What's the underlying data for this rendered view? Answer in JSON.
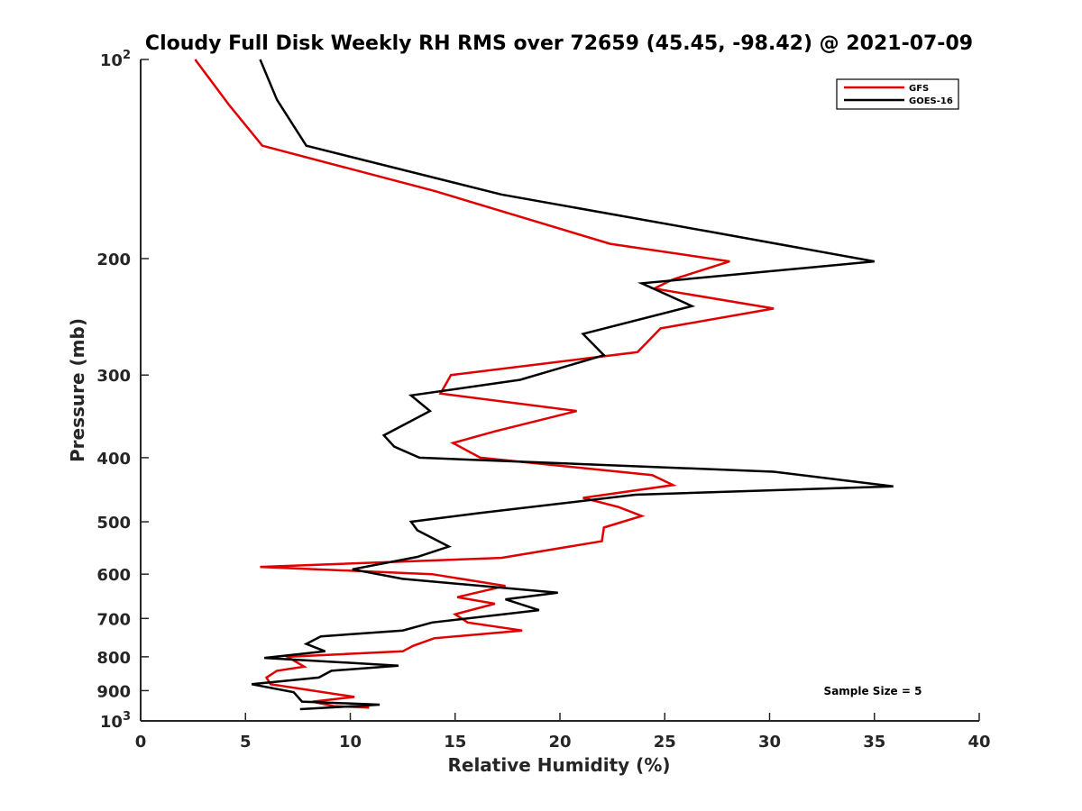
{
  "chart_data": {
    "type": "line",
    "title": "Cloudy Full Disk Weekly RH RMS over 72659 (45.45, -98.42) @ 2021-07-09",
    "xlabel": "Relative Humidity (%)",
    "ylabel": "Pressure (mb)",
    "xlim": [
      0,
      40
    ],
    "ylim": [
      100,
      1000
    ],
    "y_scale": "log",
    "y_reversed": true,
    "grid": false,
    "legend_position": "top-right",
    "annotation": "Sample Size = 5",
    "x_ticks": [
      "0",
      "5",
      "10",
      "15",
      "20",
      "25",
      "30",
      "35",
      "40"
    ],
    "y_ticks": [
      {
        "value": 100,
        "base": "10",
        "exp": "2"
      },
      {
        "value": 200,
        "label": "200"
      },
      {
        "value": 300,
        "label": "300"
      },
      {
        "value": 400,
        "label": "400"
      },
      {
        "value": 500,
        "label": "500"
      },
      {
        "value": 600,
        "label": "600"
      },
      {
        "value": 700,
        "label": "700"
      },
      {
        "value": 800,
        "label": "800"
      },
      {
        "value": 900,
        "label": "900"
      },
      {
        "value": 1000,
        "base": "10",
        "exp": "3"
      }
    ],
    "series": [
      {
        "name": "GFS",
        "color": "#e00000",
        "points": [
          [
            2.6,
            100
          ],
          [
            4.2,
            117
          ],
          [
            5.8,
            135
          ],
          [
            14,
            158
          ],
          [
            22.4,
            190
          ],
          [
            28.1,
            202
          ],
          [
            25.4,
            215
          ],
          [
            24.5,
            222
          ],
          [
            30.2,
            238
          ],
          [
            24.8,
            255
          ],
          [
            23.7,
            277
          ],
          [
            14.8,
            300
          ],
          [
            14.3,
            320
          ],
          [
            20.8,
            340
          ],
          [
            16.9,
            365
          ],
          [
            14.9,
            380
          ],
          [
            16.2,
            400
          ],
          [
            24.4,
            425
          ],
          [
            25.4,
            440
          ],
          [
            21.1,
            460
          ],
          [
            22.8,
            475
          ],
          [
            23.9,
            490
          ],
          [
            22.1,
            510
          ],
          [
            22.0,
            535
          ],
          [
            17.2,
            567
          ],
          [
            5.7,
            585
          ],
          [
            13.9,
            600
          ],
          [
            17.4,
            625
          ],
          [
            15.1,
            650
          ],
          [
            16.9,
            665
          ],
          [
            15.0,
            690
          ],
          [
            15.6,
            710
          ],
          [
            18.2,
            730
          ],
          [
            14.0,
            750
          ],
          [
            13.0,
            770
          ],
          [
            12.5,
            785
          ],
          [
            7.0,
            800
          ],
          [
            7.8,
            828
          ],
          [
            6.5,
            840
          ],
          [
            6.0,
            860
          ],
          [
            6.2,
            880
          ],
          [
            10.2,
            920
          ],
          [
            8.2,
            935
          ],
          [
            9.2,
            950
          ],
          [
            10.9,
            955
          ]
        ]
      },
      {
        "name": "GOES-16",
        "color": "#000000",
        "points": [
          [
            5.7,
            100
          ],
          [
            6.5,
            115
          ],
          [
            7.9,
            135
          ],
          [
            17.2,
            160
          ],
          [
            27.1,
            182
          ],
          [
            35.0,
            202
          ],
          [
            23.9,
            218
          ],
          [
            26.3,
            236
          ],
          [
            21.1,
            260
          ],
          [
            22.1,
            280
          ],
          [
            18.1,
            305
          ],
          [
            12.9,
            322
          ],
          [
            13.8,
            340
          ],
          [
            11.6,
            370
          ],
          [
            12.1,
            385
          ],
          [
            13.3,
            400
          ],
          [
            30.2,
            420
          ],
          [
            35.9,
            442
          ],
          [
            23.6,
            455
          ],
          [
            16.2,
            485
          ],
          [
            12.9,
            500
          ],
          [
            13.2,
            515
          ],
          [
            14.7,
            545
          ],
          [
            13.2,
            565
          ],
          [
            10.1,
            590
          ],
          [
            12.5,
            610
          ],
          [
            19.9,
            640
          ],
          [
            17.4,
            655
          ],
          [
            19.0,
            680
          ],
          [
            13.9,
            710
          ],
          [
            12.5,
            730
          ],
          [
            8.6,
            745
          ],
          [
            7.9,
            765
          ],
          [
            8.8,
            785
          ],
          [
            5.9,
            803
          ],
          [
            12.3,
            825
          ],
          [
            9.1,
            840
          ],
          [
            8.5,
            860
          ],
          [
            5.3,
            880
          ],
          [
            7.3,
            905
          ],
          [
            7.7,
            935
          ],
          [
            11.4,
            945
          ],
          [
            7.6,
            960
          ]
        ]
      }
    ]
  }
}
